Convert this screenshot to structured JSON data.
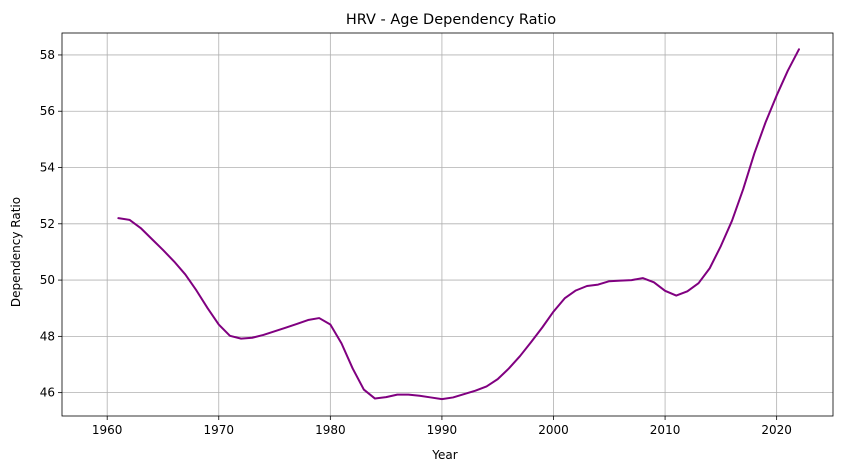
{
  "chart_data": {
    "type": "line",
    "title": "HRV - Age Dependency Ratio",
    "xlabel": "Year",
    "ylabel": "Dependency Ratio",
    "xlim": [
      1955.95,
      2025.05
    ],
    "ylim": [
      45.17,
      58.78
    ],
    "xticks": [
      1960,
      1970,
      1980,
      1990,
      2000,
      2010,
      2020
    ],
    "yticks": [
      46,
      48,
      50,
      52,
      54,
      56,
      58
    ],
    "grid": true,
    "line_color": "#800080",
    "series": [
      {
        "x": [
          1961,
          1962,
          1963,
          1964,
          1965,
          1966,
          1967,
          1968,
          1969,
          1970,
          1971,
          1972,
          1973,
          1974,
          1975,
          1976,
          1977,
          1978,
          1979,
          1980,
          1981,
          1982,
          1983,
          1984,
          1985,
          1986,
          1987,
          1988,
          1989,
          1990,
          1991,
          1992,
          1993,
          1994,
          1995,
          1996,
          1997,
          1998,
          1999,
          2000,
          2001,
          2002,
          2003,
          2004,
          2005,
          2006,
          2007,
          2008,
          2009,
          2010,
          2011,
          2012,
          2013,
          2014,
          2015,
          2016,
          2017,
          2018,
          2019,
          2020,
          2021,
          2022
        ],
        "values": [
          52.2,
          52.14,
          51.85,
          51.46,
          51.07,
          50.66,
          50.2,
          49.63,
          49.0,
          48.42,
          48.02,
          47.92,
          47.95,
          48.05,
          48.18,
          48.31,
          48.44,
          48.58,
          48.65,
          48.42,
          47.75,
          46.86,
          46.11,
          45.79,
          45.84,
          45.93,
          45.93,
          45.89,
          45.83,
          45.77,
          45.83,
          45.95,
          46.07,
          46.22,
          46.48,
          46.86,
          47.3,
          47.8,
          48.32,
          48.88,
          49.35,
          49.63,
          49.79,
          49.84,
          49.96,
          49.98,
          50.0,
          50.07,
          49.92,
          49.62,
          49.45,
          49.6,
          49.89,
          50.42,
          51.21,
          52.11,
          53.23,
          54.5,
          55.6,
          56.56,
          57.44,
          58.2
        ]
      }
    ]
  }
}
